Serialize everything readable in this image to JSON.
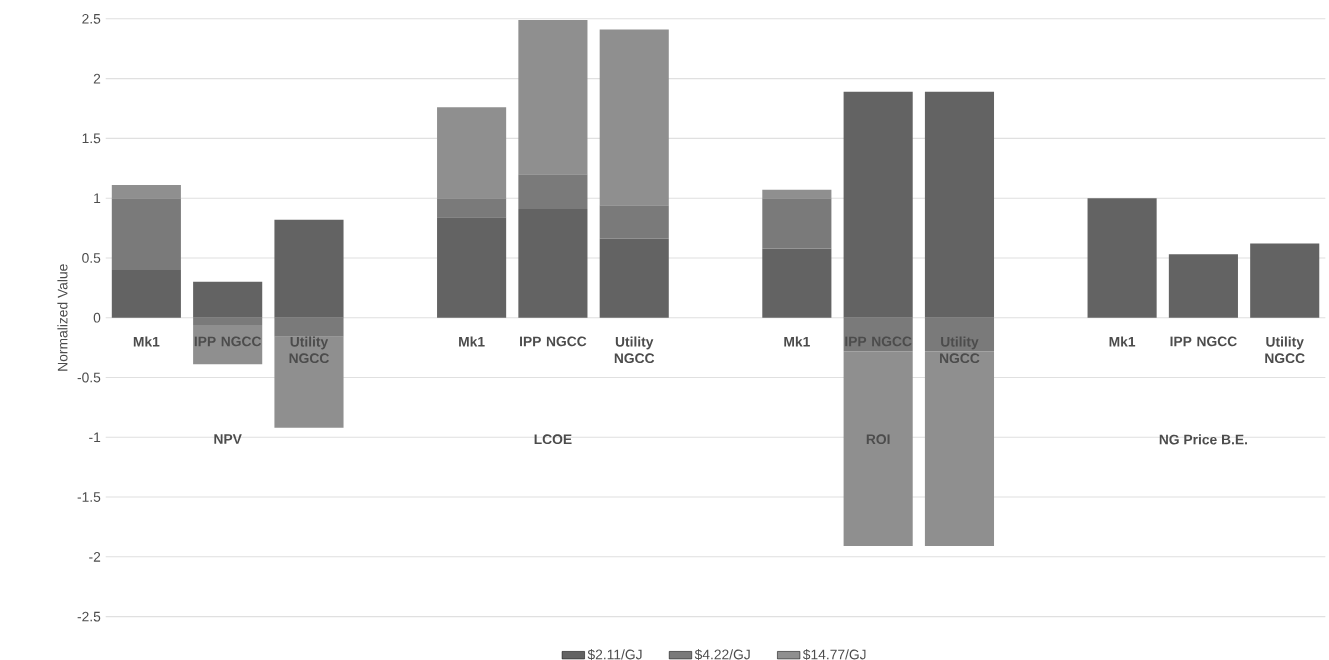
{
  "chart_data": {
    "type": "bar",
    "stacked": true,
    "ylabel": "Normalized Value",
    "categories": [
      "Mk1",
      "IPP NGCC",
      "Utility NGCC",
      null,
      "Mk1",
      "IPP NGCC",
      "Utility NGCC",
      null,
      "Mk1",
      "IPP NGCC",
      "Utility NGCC",
      null,
      "Mk1",
      "IPP NGCC",
      "Utility NGCC"
    ],
    "series": [
      {
        "name": "$2.11/GJ",
        "color": "#636363",
        "values": [
          0.4,
          0.3,
          0.82,
          null,
          0.84,
          0.91,
          0.66,
          null,
          0.58,
          1.89,
          1.89,
          null,
          1.0,
          0.53,
          0.62
        ]
      },
      {
        "name": "$4.22/GJ",
        "color": "#7a7a7a",
        "values": [
          0.6,
          -0.06,
          -0.16,
          null,
          0.16,
          0.29,
          0.28,
          null,
          0.42,
          -0.28,
          -0.28,
          null,
          null,
          null,
          null
        ]
      },
      {
        "name": "$14.77/GJ",
        "color": "#8f8f8f",
        "values": [
          0.11,
          -0.33,
          -0.76,
          null,
          0.76,
          1.29,
          1.47,
          null,
          0.07,
          -1.63,
          -1.63,
          null,
          null,
          null,
          null
        ]
      }
    ],
    "annotations": [
      "NPV",
      "LCOE",
      "ROI",
      "NG Price B.E."
    ],
    "ylim": [
      -2.5,
      2.5
    ],
    "yticks": [
      -2.5,
      -2,
      -1.5,
      -1,
      -0.5,
      0,
      0.5,
      1,
      1.5,
      2,
      2.5
    ],
    "grid": "y",
    "legend": "bottom"
  }
}
